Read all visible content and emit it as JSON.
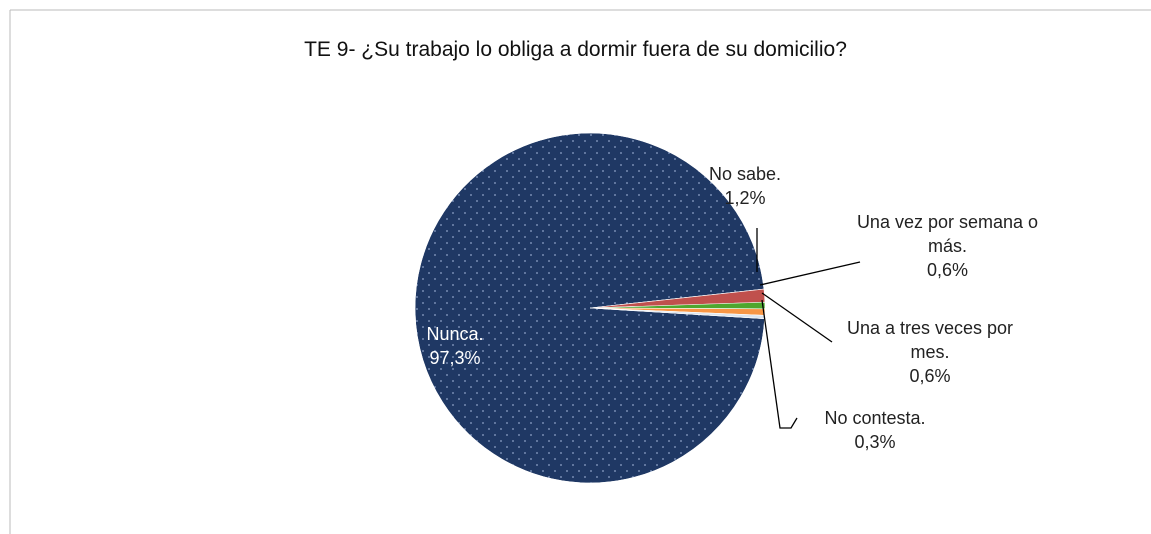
{
  "chart_data": {
    "type": "pie",
    "title": "TE 9- ¿Su trabajo lo obliga a dormir fuera de su domicilio?",
    "categories": [
      "Nunca.",
      "No sabe.",
      "Una vez por semana o más.",
      "Una a tres veces por mes.",
      "No contesta."
    ],
    "values": [
      97.3,
      1.2,
      0.6,
      0.6,
      0.3
    ],
    "value_labels": [
      "97,3%",
      "1,2%",
      "0,6%",
      "0,6%",
      "0,3%"
    ],
    "colors": [
      "#1f3864",
      "#c0504d",
      "#4ea72e",
      "#f79646",
      "#dbe5f1"
    ]
  }
}
